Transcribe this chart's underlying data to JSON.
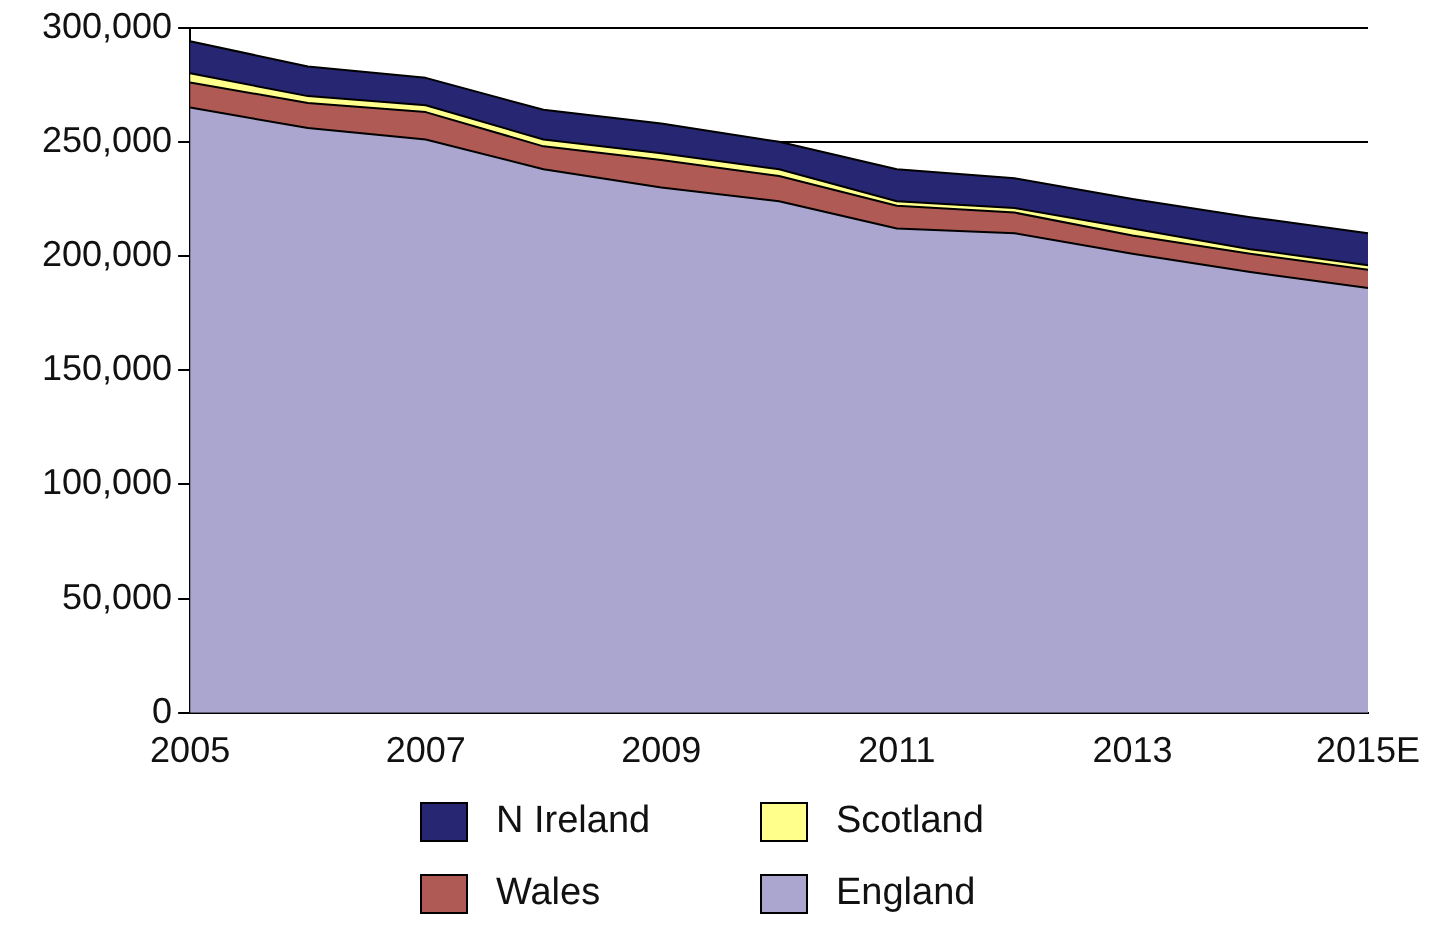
{
  "chart_data": {
    "type": "area",
    "stacked": true,
    "categories": [
      "2005",
      null,
      "2007",
      null,
      "2009",
      null,
      "2011",
      null,
      "2013",
      null,
      "2015E"
    ],
    "series": [
      {
        "name": "England",
        "color": "#aaa6d0",
        "values": [
          265000,
          256000,
          251000,
          238000,
          230000,
          224000,
          212000,
          210000,
          201000,
          193000,
          186000
        ]
      },
      {
        "name": "Wales",
        "color": "#b05a55",
        "values": [
          11000,
          11000,
          12000,
          10000,
          12000,
          11000,
          10000,
          9000,
          8000,
          8000,
          8000
        ]
      },
      {
        "name": "Scotland",
        "color": "#ffff8c",
        "values": [
          4000,
          3000,
          3000,
          3000,
          3000,
          3000,
          2000,
          2000,
          3000,
          2000,
          2000
        ]
      },
      {
        "name": "N Ireland",
        "color": "#262673",
        "values": [
          14000,
          13000,
          12000,
          13000,
          13000,
          12000,
          14000,
          13000,
          13000,
          14000,
          14000
        ]
      }
    ],
    "ylim": [
      0,
      300000
    ],
    "yticks": [
      0,
      {
        "value": 50000,
        "label": "50,000"
      },
      {
        "value": 100000,
        "label": "100,000"
      },
      {
        "value": 150000,
        "label": "150,000"
      },
      {
        "value": 200000,
        "label": "200,000"
      },
      {
        "value": 250000,
        "label": "250,000"
      },
      {
        "value": 300000,
        "label": "300,000"
      }
    ],
    "grid": "y",
    "legend": "bottom"
  }
}
